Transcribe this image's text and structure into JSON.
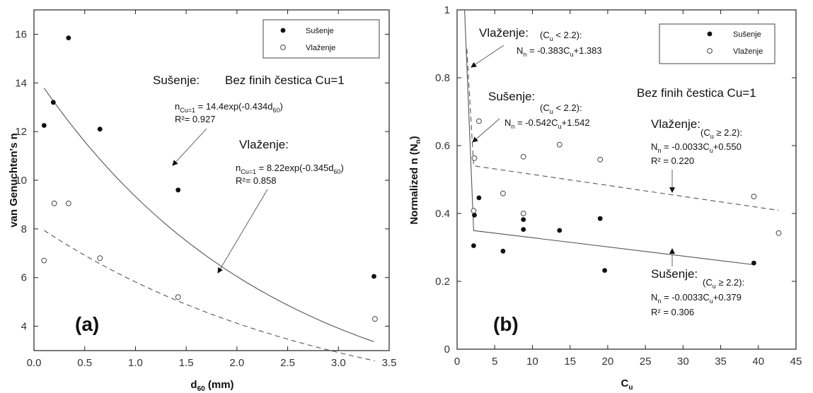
{
  "chart_data": [
    {
      "type": "scatter",
      "panel_label": "(a)",
      "xlabel_base": "d",
      "xlabel_sub": "60",
      "xlabel_tail": " (mm)",
      "ylabel": "van Genuchten's n",
      "xlim": [
        0.0,
        3.5
      ],
      "ylim": [
        3,
        17
      ],
      "xticks": [
        0.0,
        0.5,
        1.0,
        1.5,
        2.0,
        2.5,
        3.0,
        3.5
      ],
      "xtick_labels": [
        "0.0",
        "0.5",
        "1.0",
        "1.5",
        "2.0",
        "2.5",
        "3.0",
        "3.5"
      ],
      "yticks": [
        4,
        6,
        8,
        10,
        12,
        14,
        16
      ],
      "ytick_labels": [
        "4",
        "6",
        "8",
        "10",
        "12",
        "14",
        "16"
      ],
      "legend_placement": "top-right",
      "series": [
        {
          "name": "Sušenje",
          "marker": "filled",
          "x": [
            0.1,
            0.19,
            0.34,
            0.65,
            1.42,
            3.35
          ],
          "y": [
            12.25,
            13.2,
            15.85,
            12.1,
            9.6,
            6.05
          ]
        },
        {
          "name": "Vlaženje",
          "marker": "open",
          "x": [
            0.1,
            0.2,
            0.34,
            0.65,
            1.42,
            3.36
          ],
          "y": [
            6.7,
            9.05,
            9.05,
            6.8,
            5.2,
            4.3
          ]
        }
      ],
      "fits": [
        {
          "series": "Sušenje",
          "style": "solid",
          "model": "exp",
          "a": 14.4,
          "b": -0.434,
          "x_range": [
            0.1,
            3.35
          ]
        },
        {
          "series": "Vlaženje",
          "style": "dashed",
          "model": "exp",
          "a": 8.22,
          "b": -0.345,
          "x_range": [
            0.1,
            3.36
          ]
        }
      ],
      "annotations": {
        "title_note": "Bez finih čestica Cu=1",
        "drying_title": "Sušenje:",
        "drying_eq_lhs": "n",
        "drying_eq_sub": "Cu=1",
        "drying_eq_mid": " = 14.4exp(-0.434d",
        "drying_eq_sub2": "60",
        "drying_eq_end": ")",
        "drying_r2": "R²= 0.927",
        "wetting_title": "Vlaženje:",
        "wetting_eq_lhs": "n",
        "wetting_eq_sub": "Cu=1",
        "wetting_eq_mid": " = 8.22exp(-0.345d",
        "wetting_eq_sub2": "60",
        "wetting_eq_end": ")",
        "wetting_r2": "R²= 0.858"
      }
    },
    {
      "type": "scatter",
      "panel_label": "(b)",
      "xlabel_base": "C",
      "xlabel_sub": "u",
      "ylabel_base": "Normalized n (N",
      "ylabel_sub": "n",
      "ylabel_end": ")",
      "xlim": [
        0,
        45
      ],
      "ylim": [
        0,
        1
      ],
      "xticks": [
        0,
        5,
        10,
        15,
        20,
        25,
        30,
        35,
        40,
        45
      ],
      "xtick_labels": [
        "0",
        "5",
        "10",
        "15",
        "20",
        "25",
        "30",
        "35",
        "40",
        "45"
      ],
      "yticks": [
        0,
        0.2,
        0.4,
        0.6,
        0.8,
        1
      ],
      "ytick_labels": [
        "0",
        "0.2",
        "0.4",
        "0.6",
        "0.8",
        "1"
      ],
      "legend_placement": "top-right",
      "series": [
        {
          "name": "Sušenje",
          "marker": "filled",
          "x": [
            2.2,
            2.3,
            2.9,
            6.1,
            8.8,
            8.8,
            13.6,
            19.0,
            19.6,
            39.4
          ],
          "y": [
            0.305,
            0.395,
            0.446,
            0.289,
            0.382,
            0.353,
            0.35,
            0.385,
            0.232,
            0.254
          ]
        },
        {
          "name": "Vlaženje",
          "marker": "open",
          "x": [
            2.2,
            2.3,
            2.9,
            6.1,
            8.8,
            8.8,
            13.6,
            19.0,
            39.4,
            42.7
          ],
          "y": [
            0.408,
            0.563,
            0.672,
            0.459,
            0.567,
            0.4,
            0.603,
            0.559,
            0.45,
            0.342
          ]
        }
      ],
      "fits": [
        {
          "series": "Vlaženje",
          "style": "dashed",
          "segments": [
            {
              "m": -0.383,
              "c": 1.383,
              "x_range": [
                1.3,
                2.2
              ]
            },
            {
              "m": -0.0033,
              "c": 0.55,
              "x_range": [
                2.2,
                42.7
              ]
            }
          ]
        },
        {
          "series": "Sušenje",
          "style": "solid",
          "segments": [
            {
              "m": -0.542,
              "c": 1.542,
              "x_range": [
                1.0,
                2.2
              ]
            },
            {
              "m": -0.0033,
              "c": 0.379,
              "x_range": [
                2.2,
                39.4
              ]
            }
          ]
        }
      ],
      "annotations": {
        "title_note": "Bez finih čestica Cu=1",
        "wet_low_title": "Vlaženje:",
        "wet_low_cond_a": "(C",
        "wet_low_cond_sub": "u",
        "wet_low_cond_b": " < 2.2):",
        "wet_low_eq_a": "N",
        "wet_low_eq_sub": "n",
        "wet_low_eq_b": " = -0.383C",
        "wet_low_eq_sub2": "u",
        "wet_low_eq_c": "+1.383",
        "dry_low_title": "Sušenje:",
        "dry_low_cond_a": "(C",
        "dry_low_cond_sub": "u",
        "dry_low_cond_b": " < 2.2):",
        "dry_low_eq_a": "N",
        "dry_low_eq_sub": "n",
        "dry_low_eq_b": " = -0.542C",
        "dry_low_eq_sub2": "u",
        "dry_low_eq_c": "+1.542",
        "wet_high_title": "Vlaženje:",
        "wet_high_cond_a": "(C",
        "wet_high_cond_sub": "u",
        "wet_high_cond_b": " ≥ 2.2):",
        "wet_high_eq_a": "N",
        "wet_high_eq_sub": "n",
        "wet_high_eq_b": " = -0.0033C",
        "wet_high_eq_sub2": "u",
        "wet_high_eq_c": "+0.550",
        "wet_high_r2": "R² = 0.220",
        "dry_high_title": "Sušenje:",
        "dry_high_cond_a": "(C",
        "dry_high_cond_sub": "u",
        "dry_high_cond_b": " ≥ 2.2):",
        "dry_high_eq_a": "N",
        "dry_high_eq_sub": "n",
        "dry_high_eq_b": " = -0.0033C",
        "dry_high_eq_sub2": "u",
        "dry_high_eq_c": "+0.379",
        "dry_high_r2": "R² = 0.306"
      }
    }
  ]
}
